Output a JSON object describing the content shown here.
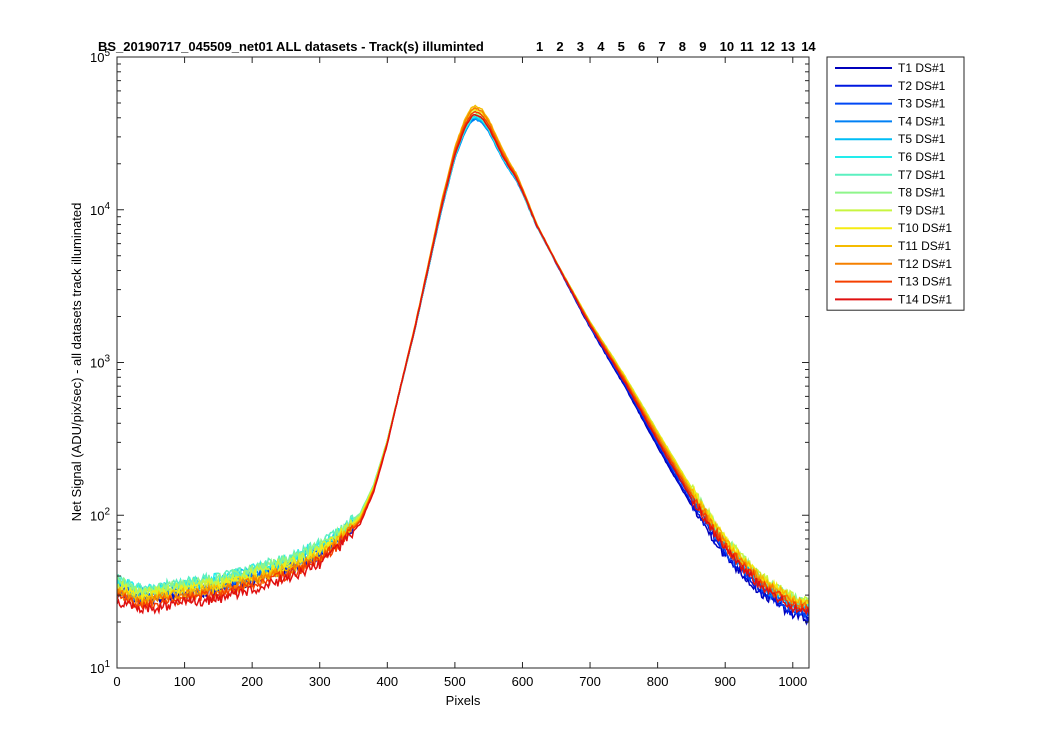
{
  "chart_data": {
    "type": "line",
    "title": "BS_20190717_045509_net01 ALL datasets - Track(s) illuminted",
    "title_tracks": [
      "1",
      "2",
      "3",
      "4",
      "5",
      "6",
      "7",
      "8",
      "9",
      "10",
      "11",
      "12",
      "13",
      "14"
    ],
    "xlabel": "Pixels",
    "ylabel": "Net Signal (ADU/pix/sec) - all datasets track illuminated",
    "xlim": [
      0,
      1024
    ],
    "ylim": [
      10,
      100000
    ],
    "yscale": "log",
    "x_ticks": [
      0,
      100,
      200,
      300,
      400,
      500,
      600,
      700,
      800,
      900,
      1000
    ],
    "y_ticks": [
      {
        "value": 10,
        "base": "10",
        "exp": "1"
      },
      {
        "value": 100,
        "base": "10",
        "exp": "2"
      },
      {
        "value": 1000,
        "base": "10",
        "exp": "3"
      },
      {
        "value": 10000,
        "base": "10",
        "exp": "4"
      },
      {
        "value": 100000,
        "base": "10",
        "exp": "5"
      }
    ],
    "grid": false,
    "legend_position": "outside-top-right",
    "profile_x": [
      0,
      10,
      30,
      60,
      100,
      150,
      200,
      250,
      300,
      330,
      360,
      380,
      400,
      420,
      440,
      460,
      480,
      500,
      515,
      525,
      530,
      540,
      550,
      560,
      570,
      580,
      590,
      600,
      620,
      650,
      700,
      750,
      800,
      850,
      900,
      950,
      1000,
      1024
    ],
    "profile_y": [
      32,
      31,
      28,
      29,
      31,
      33,
      38,
      44,
      55,
      70,
      95,
      150,
      300,
      700,
      1600,
      4000,
      10000,
      22000,
      33000,
      39000,
      40000,
      38000,
      33000,
      27000,
      22000,
      18500,
      16000,
      13000,
      8000,
      4500,
      1800,
      800,
      330,
      140,
      65,
      38,
      27,
      25
    ],
    "series": [
      {
        "name": "T1 DS#1",
        "color": "#0000bb",
        "peak_scale": 1.03,
        "left_scale": 0.98,
        "right_scale": 0.83
      },
      {
        "name": "T2 DS#1",
        "color": "#0018e0",
        "peak_scale": 0.99,
        "left_scale": 1.0,
        "right_scale": 0.86
      },
      {
        "name": "T3 DS#1",
        "color": "#0048f5",
        "peak_scale": 1.0,
        "left_scale": 1.04,
        "right_scale": 0.9
      },
      {
        "name": "T4 DS#1",
        "color": "#0080f5",
        "peak_scale": 0.98,
        "left_scale": 1.08,
        "right_scale": 0.93
      },
      {
        "name": "T5 DS#1",
        "color": "#00bdf5",
        "peak_scale": 1.0,
        "left_scale": 1.13,
        "right_scale": 0.97
      },
      {
        "name": "T6 DS#1",
        "color": "#22ecec",
        "peak_scale": 1.02,
        "left_scale": 1.17,
        "right_scale": 1.0
      },
      {
        "name": "T7 DS#1",
        "color": "#5cf0c0",
        "peak_scale": 1.04,
        "left_scale": 1.18,
        "right_scale": 1.04
      },
      {
        "name": "T8 DS#1",
        "color": "#8ef58a",
        "peak_scale": 1.06,
        "left_scale": 1.15,
        "right_scale": 1.07
      },
      {
        "name": "T9 DS#1",
        "color": "#c8f540",
        "peak_scale": 1.1,
        "left_scale": 1.1,
        "right_scale": 1.08
      },
      {
        "name": "T10 DS#1",
        "color": "#f5ec12",
        "peak_scale": 1.14,
        "left_scale": 1.05,
        "right_scale": 1.06
      },
      {
        "name": "T11 DS#1",
        "color": "#f5bb00",
        "peak_scale": 1.2,
        "left_scale": 1.0,
        "right_scale": 1.04
      },
      {
        "name": "T12 DS#1",
        "color": "#f58000",
        "peak_scale": 1.16,
        "left_scale": 0.96,
        "right_scale": 1.0
      },
      {
        "name": "T13 DS#1",
        "color": "#f54000",
        "peak_scale": 1.1,
        "left_scale": 0.92,
        "right_scale": 0.96
      },
      {
        "name": "T14 DS#1",
        "color": "#e01010",
        "peak_scale": 1.05,
        "left_scale": 0.86,
        "right_scale": 0.92
      }
    ]
  }
}
